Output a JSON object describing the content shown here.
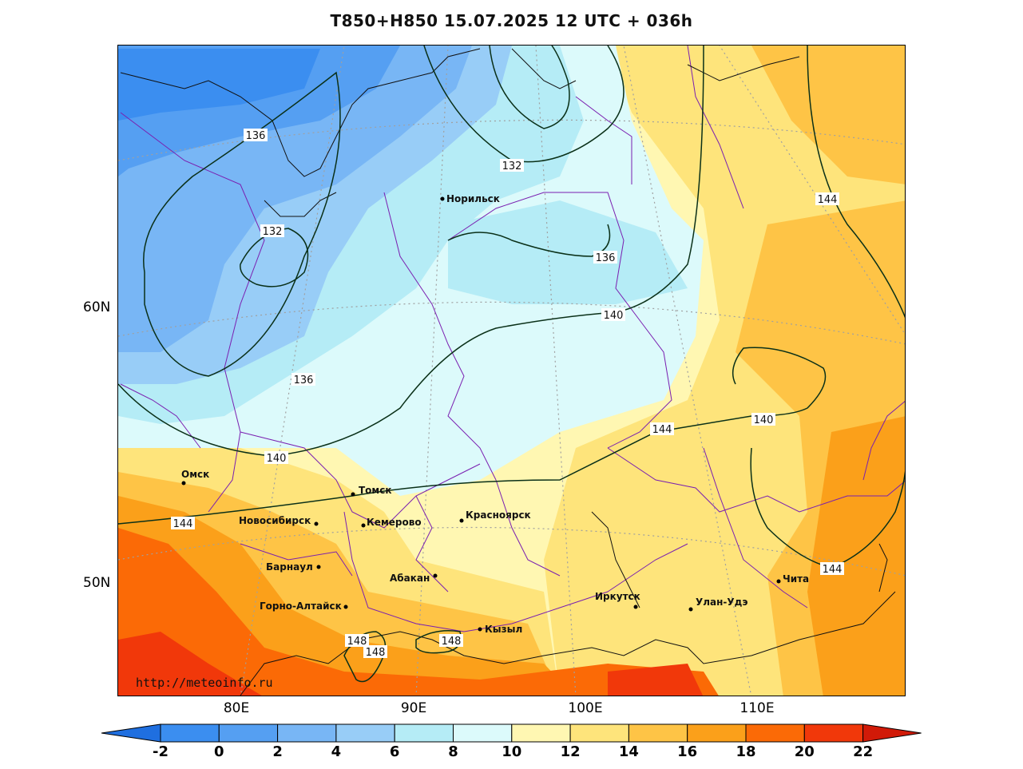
{
  "title": "T850+H850 15.07.2025 12 UTC + 036h",
  "watermark": "http://meteoinfo.ru",
  "lat_labels": [
    "60N",
    "50N"
  ],
  "lon_labels": [
    "80E",
    "90E",
    "100E",
    "110E"
  ],
  "colorbar": {
    "ticks": [
      "-2",
      "0",
      "2",
      "4",
      "6",
      "8",
      "10",
      "12",
      "14",
      "16",
      "18",
      "20",
      "22"
    ],
    "colors": [
      "#1f6fe0",
      "#3b8ef0",
      "#559ff2",
      "#78b6f5",
      "#98cdf7",
      "#b5ecf6",
      "#dcfafb",
      "#fff7b2",
      "#fee47b",
      "#fec446",
      "#fba01a",
      "#fb6a06",
      "#f1380a",
      "#d11a08"
    ]
  },
  "cities": [
    {
      "name": "Норильск"
    },
    {
      "name": "Омск"
    },
    {
      "name": "Томск"
    },
    {
      "name": "Новосибирск"
    },
    {
      "name": "Кемерово"
    },
    {
      "name": "Красноярск"
    },
    {
      "name": "Барнаул"
    },
    {
      "name": "Абакан"
    },
    {
      "name": "Горно-Алтайск"
    },
    {
      "name": "Кызыл"
    },
    {
      "name": "Иркутск"
    },
    {
      "name": "Улан-Удэ"
    },
    {
      "name": "Чита"
    }
  ],
  "isohypse_labels": [
    "136",
    "132",
    "132",
    "136",
    "140",
    "136",
    "140",
    "144",
    "144",
    "140",
    "144",
    "144",
    "148",
    "148",
    "148"
  ]
}
